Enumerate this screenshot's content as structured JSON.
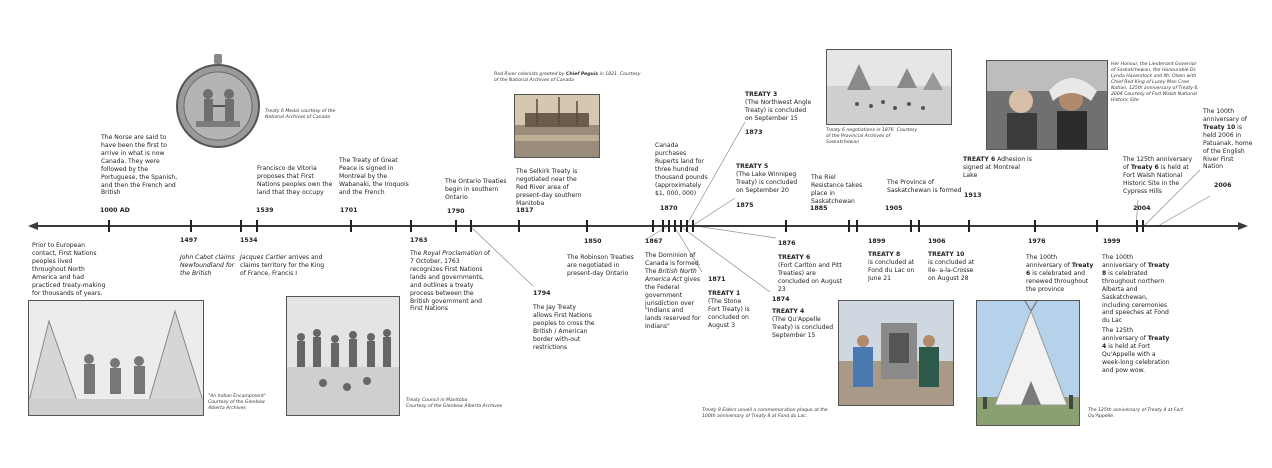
{
  "colors": {
    "line": "#3a3a3a",
    "tick": "#222222",
    "connector": "#8c8c8c"
  },
  "axis": {
    "arrow_left": "arrowhead-left",
    "arrow_right": "arrowhead-right"
  },
  "years": {
    "y1000": "1000 AD",
    "y1497": "1497",
    "y1534": "1534",
    "y1539": "1539",
    "y1701": "1701",
    "y1763": "1763",
    "y1790": "1790",
    "y1794": "1794",
    "y1817": "1817",
    "y1850": "1850",
    "y1867": "1867",
    "y1870": "1870",
    "y1871": "1871",
    "y1873": "1873",
    "y1874": "1874",
    "y1875": "1875",
    "y1876": "1876",
    "y1885": "1885",
    "y1899": "1899",
    "y1905": "1905",
    "y1906": "1906",
    "y1913": "1913",
    "y1976": "1976",
    "y1999": "1999",
    "y2004": "2004",
    "y2006": "2006"
  },
  "events": {
    "prior": "Prior to European contact, First Nations peoples lived throughout North America and had practiced treaty-making for thousands of years.",
    "norse": "The Norse are said to have been the first to arrive in what is now Canada. They were followed by the Portuguese, the Spanish, and then the French and British",
    "cabot": "John Cabot claims Newfoundland for the British",
    "cartier_1": "Jacques Cartier",
    "cartier_2": " arrives and claims territory for the King of France, Francis I",
    "vitoria": "Francisco de Vitoria proposes that First Nations peoples own the land that they occupy",
    "great_peace": "The Treaty of Great Peace is signed in Montreal by the Wabanaki, the Iroquois and the French",
    "procl_1": "The ",
    "procl_2": "Royal Proclamation",
    "procl_3": " of 7 October, 1763 recognizes First Nations lands and governments, and outlines a treaty process between the British government and First Nations",
    "ontario": "The Ontario Treaties begin in southern Ontario",
    "jay": "The Jay Treaty allows First Nations peoples to cross the British / American border with-out restrictions",
    "selkirk": "The Selkirk Treaty is negotiated near the Red River area of present-day southern Manitoba",
    "robinson": "The Robinson Treaties are negotiated in present-day Ontario",
    "dominion_1": "The Dominion of Canada is formed. The ",
    "dominion_2": "British North America Act",
    "dominion_3": " gives the Federal government jurisdiction over \"Indians and lands reserved for Indians\"",
    "ruperts": "Canada purchases Ruperts land for three hundred thousand pounds (approximately $1, 000, 000)",
    "t1_head": "TREATY 1",
    "t1_body": "(The Stone Fort Treaty) is concluded on August 3",
    "t3_head": "TREATY 3",
    "t3_body": "(The Northwest Angle Treaty) is concluded on September 15",
    "t4_head": "TREATY 4",
    "t4_body": "(The Qu'Appelle Treaty) is concluded September 15",
    "t5_head": "TREATY 5",
    "t5_body": "(The Lake Winnipeg Treaty) is concluded on September 20",
    "t6_head": "TREATY 6",
    "t6_body": "(Fort Carlton and Pitt Treaties) are concluded on August 23",
    "riel": "The Riel Resistance takes place in Saskatchewan",
    "t8_head": "TREATY 8",
    "t8_body": "is concluded at Fond du Lac on June 21",
    "sask": "The Province of Saskatchewan is formed",
    "t10_head": "TREATY 10",
    "t10_body": "is concluded at Ile- a-la-Crosse on August 28",
    "t6adh_head": "TREATY 6",
    "t6adh_body": " Adhesion is signed at Montreal Lake",
    "ann100_1": "The 100th anniversary of ",
    "ann100_2": "Treaty 6",
    "ann100_3": " is celebrated and renewed throughout the province",
    "ann100t8_1": "The 100th anniversary of ",
    "ann100t8_2": "Treaty 8",
    "ann100t8_3": " is celebrated throughout northern Alberta and Saskatchewan, including ceremonies and speeches at Fond du Lac",
    "ann125t4_1": "The 125th anniversary of ",
    "ann125t4_2": "Treaty 4",
    "ann125t4_3": " is held at Fort Qu'Appelle with a week-long celebration and pow wow.",
    "ann125t6_1": "The 125th anniversary of ",
    "ann125t6_2": "Treaty 6",
    "ann125t6_3": " is held at Fort Walsh National Historic Site in the Cypress Hills",
    "ann100t10_1": "The 100th anniversary of ",
    "ann100t10_2": "Treaty 10",
    "ann100t10_3": " is held 2006 in Patuanak, home of the English River First Nation"
  },
  "captions": {
    "medal": "Treaty 6 Medal courtesy of the National Archives of Canada",
    "redriver_1": "Red River colonists greeted by ",
    "redriver_2": "Chief Peguis",
    "redriver_3": " in 1821. Courtesy of the National Archives of Canada",
    "negotiations": "Treaty 6 negotiations in 1876. Courtesy of the Provincial Archives of Saskatchewan",
    "honour": "Her Honour, the Lieutenant Governor of Saskatchewan, the Honourable Dr. Lynda Haverstock and Mr. Olsen with Chief Red King of Lucky Man Cree Nation, 125th anniversary of Treaty 6, 2004 Courtesy of Fort Walsh National Historic Site",
    "encampment": "\"An Indian Encampment\" Courtesy of the Glenbow Alberta Archives",
    "council_1": "Treaty Council in Manitoba",
    "council_2": "Courtesy of the Glenbow Alberta Archives",
    "elders": "Treaty 8 Elders unveil a commemoration plaque at the 100th anniversary of Treaty 8 at Fond du Lac.",
    "t4_125": "The 125th anniversary of Treaty 4 at Fort Qu'Appelle."
  }
}
